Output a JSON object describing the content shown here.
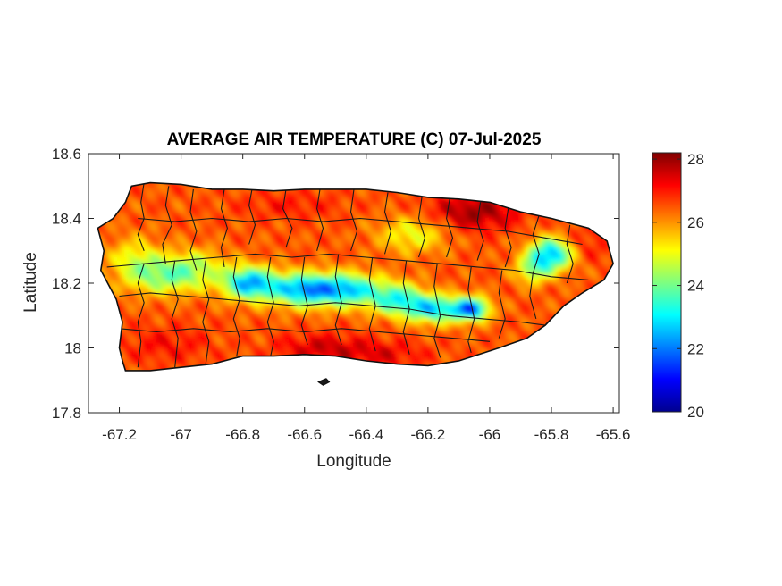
{
  "chart_data": {
    "type": "heatmap",
    "title": "AVERAGE AIR TEMPERATURE (C) 07-Jul-2025",
    "xlabel": "Longitude",
    "ylabel": "Latitude",
    "xlim": [
      -67.3,
      -65.58
    ],
    "ylim": [
      17.8,
      18.6
    ],
    "x_ticks": [
      -67.2,
      -67,
      -66.8,
      -66.6,
      -66.4,
      -66.2,
      -66,
      -65.8,
      -65.6
    ],
    "x_tick_labels": [
      "-67.2",
      "-67",
      "-66.8",
      "-66.6",
      "-66.4",
      "-66.2",
      "-66",
      "-65.8",
      "-65.6"
    ],
    "y_ticks": [
      17.8,
      18,
      18.2,
      18.4,
      18.6
    ],
    "y_tick_labels": [
      "17.8",
      "18",
      "18.2",
      "18.4",
      "18.6"
    ],
    "colorbar": {
      "colormap": "jet",
      "range": [
        20,
        28.2
      ],
      "ticks": [
        20,
        22,
        24,
        26,
        28
      ],
      "tick_labels": [
        "20",
        "22",
        "24",
        "26",
        "28"
      ]
    },
    "grid": false,
    "region_outline": [
      [
        -67.27,
        18.37
      ],
      [
        -67.22,
        18.4
      ],
      [
        -67.18,
        18.45
      ],
      [
        -67.16,
        18.5
      ],
      [
        -67.1,
        18.51
      ],
      [
        -67.0,
        18.505
      ],
      [
        -66.9,
        18.49
      ],
      [
        -66.8,
        18.49
      ],
      [
        -66.7,
        18.485
      ],
      [
        -66.6,
        18.49
      ],
      [
        -66.5,
        18.49
      ],
      [
        -66.4,
        18.49
      ],
      [
        -66.3,
        18.48
      ],
      [
        -66.2,
        18.465
      ],
      [
        -66.1,
        18.46
      ],
      [
        -66.0,
        18.45
      ],
      [
        -65.9,
        18.42
      ],
      [
        -65.8,
        18.4
      ],
      [
        -65.68,
        18.37
      ],
      [
        -65.62,
        18.33
      ],
      [
        -65.6,
        18.26
      ],
      [
        -65.63,
        18.21
      ],
      [
        -65.7,
        18.17
      ],
      [
        -65.76,
        18.13
      ],
      [
        -65.82,
        18.07
      ],
      [
        -65.88,
        18.03
      ],
      [
        -65.97,
        18.0
      ],
      [
        -66.1,
        17.96
      ],
      [
        -66.2,
        17.945
      ],
      [
        -66.3,
        17.95
      ],
      [
        -66.4,
        17.96
      ],
      [
        -66.5,
        17.975
      ],
      [
        -66.6,
        17.98
      ],
      [
        -66.7,
        17.975
      ],
      [
        -66.8,
        17.975
      ],
      [
        -66.9,
        17.95
      ],
      [
        -67.0,
        17.94
      ],
      [
        -67.1,
        17.93
      ],
      [
        -67.18,
        17.93
      ],
      [
        -67.19,
        17.96
      ],
      [
        -67.2,
        18.0
      ],
      [
        -67.19,
        18.08
      ],
      [
        -67.21,
        18.15
      ],
      [
        -67.26,
        18.24
      ],
      [
        -67.25,
        18.3
      ]
    ],
    "islet_outline": [
      [
        -66.555,
        17.895
      ],
      [
        -66.53,
        17.905
      ],
      [
        -66.52,
        17.895
      ],
      [
        -66.54,
        17.885
      ]
    ],
    "temperature_field": {
      "background": 26.5,
      "features": [
        {
          "lon": -66.78,
          "lat": 18.2,
          "sigma_lon": 0.06,
          "sigma_lat": 0.035,
          "delta": -4.0
        },
        {
          "lon": -66.6,
          "lat": 18.18,
          "sigma_lon": 0.08,
          "sigma_lat": 0.035,
          "delta": -4.2
        },
        {
          "lon": -66.45,
          "lat": 18.18,
          "sigma_lon": 0.07,
          "sigma_lat": 0.035,
          "delta": -3.2
        },
        {
          "lon": -66.3,
          "lat": 18.15,
          "sigma_lon": 0.06,
          "sigma_lat": 0.035,
          "delta": -3.0
        },
        {
          "lon": -66.18,
          "lat": 18.12,
          "sigma_lon": 0.06,
          "sigma_lat": 0.03,
          "delta": -3.5
        },
        {
          "lon": -66.06,
          "lat": 18.12,
          "sigma_lon": 0.04,
          "sigma_lat": 0.025,
          "delta": -4.5
        },
        {
          "lon": -65.8,
          "lat": 18.29,
          "sigma_lon": 0.05,
          "sigma_lat": 0.035,
          "delta": -4.0
        },
        {
          "lon": -65.86,
          "lat": 18.24,
          "sigma_lon": 0.04,
          "sigma_lat": 0.03,
          "delta": -2.0
        },
        {
          "lon": -67.05,
          "lat": 18.22,
          "sigma_lon": 0.08,
          "sigma_lat": 0.04,
          "delta": -2.0
        },
        {
          "lon": -66.95,
          "lat": 18.25,
          "sigma_lon": 0.07,
          "sigma_lat": 0.04,
          "delta": -1.5
        },
        {
          "lon": -67.15,
          "lat": 18.27,
          "sigma_lon": 0.06,
          "sigma_lat": 0.05,
          "delta": -1.5
        },
        {
          "lon": -66.25,
          "lat": 18.35,
          "sigma_lon": 0.08,
          "sigma_lat": 0.04,
          "delta": -1.5
        },
        {
          "lon": -66.05,
          "lat": 18.42,
          "sigma_lon": 0.1,
          "sigma_lat": 0.04,
          "delta": 1.5
        },
        {
          "lon": -66.65,
          "lat": 18.44,
          "sigma_lon": 0.12,
          "sigma_lat": 0.03,
          "delta": 0.5
        },
        {
          "lon": -66.55,
          "lat": 18.0,
          "sigma_lon": 0.1,
          "sigma_lat": 0.03,
          "delta": 1.0
        },
        {
          "lon": -66.35,
          "lat": 17.98,
          "sigma_lon": 0.1,
          "sigma_lat": 0.03,
          "delta": 0.8
        },
        {
          "lon": -67.05,
          "lat": 18.01,
          "sigma_lon": 0.1,
          "sigma_lat": 0.04,
          "delta": 0.6
        },
        {
          "lon": -65.7,
          "lat": 18.32,
          "sigma_lon": 0.06,
          "sigma_lat": 0.04,
          "delta": 0.6
        }
      ]
    },
    "municipal_boundaries": [
      [
        [
          -67.12,
          18.51
        ],
        [
          -67.13,
          18.45
        ],
        [
          -67.12,
          18.4
        ],
        [
          -67.14,
          18.35
        ],
        [
          -67.12,
          18.3
        ]
      ],
      [
        [
          -67.04,
          18.5
        ],
        [
          -67.05,
          18.44
        ],
        [
          -67.03,
          18.38
        ],
        [
          -67.06,
          18.32
        ],
        [
          -67.05,
          18.26
        ]
      ],
      [
        [
          -66.96,
          18.49
        ],
        [
          -66.97,
          18.42
        ],
        [
          -66.95,
          18.36
        ],
        [
          -66.97,
          18.3
        ],
        [
          -66.95,
          18.24
        ]
      ],
      [
        [
          -66.86,
          18.49
        ],
        [
          -66.87,
          18.43
        ],
        [
          -66.85,
          18.37
        ],
        [
          -66.87,
          18.31
        ],
        [
          -66.86,
          18.25
        ]
      ],
      [
        [
          -66.77,
          18.49
        ],
        [
          -66.78,
          18.44
        ],
        [
          -66.76,
          18.38
        ],
        [
          -66.78,
          18.32
        ]
      ],
      [
        [
          -66.66,
          18.49
        ],
        [
          -66.67,
          18.43
        ],
        [
          -66.64,
          18.37
        ],
        [
          -66.66,
          18.31
        ]
      ],
      [
        [
          -66.55,
          18.49
        ],
        [
          -66.56,
          18.43
        ],
        [
          -66.54,
          18.37
        ],
        [
          -66.56,
          18.3
        ]
      ],
      [
        [
          -66.44,
          18.49
        ],
        [
          -66.45,
          18.42
        ],
        [
          -66.43,
          18.36
        ],
        [
          -66.45,
          18.3
        ]
      ],
      [
        [
          -66.33,
          18.48
        ],
        [
          -66.34,
          18.42
        ],
        [
          -66.32,
          18.36
        ],
        [
          -66.34,
          18.29
        ]
      ],
      [
        [
          -66.22,
          18.465
        ],
        [
          -66.23,
          18.4
        ],
        [
          -66.21,
          18.34
        ],
        [
          -66.23,
          18.28
        ]
      ],
      [
        [
          -66.13,
          18.46
        ],
        [
          -66.14,
          18.4
        ],
        [
          -66.12,
          18.34
        ],
        [
          -66.14,
          18.28
        ]
      ],
      [
        [
          -66.03,
          18.45
        ],
        [
          -66.04,
          18.39
        ],
        [
          -66.02,
          18.33
        ],
        [
          -66.04,
          18.27
        ]
      ],
      [
        [
          -65.94,
          18.43
        ],
        [
          -65.95,
          18.37
        ],
        [
          -65.93,
          18.31
        ],
        [
          -65.95,
          18.25
        ]
      ],
      [
        [
          -65.84,
          18.41
        ],
        [
          -65.86,
          18.35
        ],
        [
          -65.84,
          18.29
        ],
        [
          -65.86,
          18.23
        ]
      ],
      [
        [
          -65.74,
          18.38
        ],
        [
          -65.75,
          18.32
        ],
        [
          -65.73,
          18.26
        ],
        [
          -65.75,
          18.2
        ]
      ],
      [
        [
          -67.24,
          18.25
        ],
        [
          -67.12,
          18.26
        ],
        [
          -67.0,
          18.27
        ],
        [
          -66.88,
          18.28
        ],
        [
          -66.76,
          18.29
        ],
        [
          -66.64,
          18.28
        ],
        [
          -66.52,
          18.29
        ],
        [
          -66.4,
          18.28
        ],
        [
          -66.28,
          18.27
        ],
        [
          -66.16,
          18.26
        ],
        [
          -66.04,
          18.25
        ],
        [
          -65.92,
          18.24
        ],
        [
          -65.8,
          18.22
        ],
        [
          -65.68,
          18.21
        ]
      ],
      [
        [
          -67.2,
          18.16
        ],
        [
          -67.1,
          18.17
        ],
        [
          -66.98,
          18.16
        ],
        [
          -66.86,
          18.15
        ],
        [
          -66.74,
          18.14
        ],
        [
          -66.62,
          18.13
        ],
        [
          -66.5,
          18.14
        ],
        [
          -66.38,
          18.13
        ],
        [
          -66.26,
          18.12
        ],
        [
          -66.14,
          18.1
        ],
        [
          -66.02,
          18.09
        ],
        [
          -65.9,
          18.08
        ],
        [
          -65.82,
          18.07
        ]
      ],
      [
        [
          -67.12,
          18.26
        ],
        [
          -67.14,
          18.2
        ],
        [
          -67.12,
          18.14
        ],
        [
          -67.14,
          18.08
        ],
        [
          -67.13,
          18.02
        ],
        [
          -67.14,
          17.94
        ]
      ],
      [
        [
          -67.02,
          18.27
        ],
        [
          -67.03,
          18.21
        ],
        [
          -67.01,
          18.15
        ],
        [
          -67.03,
          18.09
        ],
        [
          -67.01,
          18.03
        ],
        [
          -67.02,
          17.94
        ]
      ],
      [
        [
          -66.92,
          18.27
        ],
        [
          -66.93,
          18.21
        ],
        [
          -66.91,
          18.15
        ],
        [
          -66.93,
          18.08
        ],
        [
          -66.91,
          18.02
        ],
        [
          -66.92,
          17.95
        ]
      ],
      [
        [
          -66.82,
          18.28
        ],
        [
          -66.83,
          18.22
        ],
        [
          -66.81,
          18.15
        ],
        [
          -66.83,
          18.09
        ],
        [
          -66.81,
          18.03
        ],
        [
          -66.82,
          17.975
        ]
      ],
      [
        [
          -66.71,
          18.28
        ],
        [
          -66.72,
          18.22
        ],
        [
          -66.7,
          18.14
        ],
        [
          -66.72,
          18.08
        ],
        [
          -66.7,
          18.02
        ],
        [
          -66.71,
          17.975
        ]
      ],
      [
        [
          -66.6,
          18.28
        ],
        [
          -66.61,
          18.21
        ],
        [
          -66.59,
          18.13
        ],
        [
          -66.61,
          18.07
        ],
        [
          -66.59,
          18.01
        ]
      ],
      [
        [
          -66.49,
          18.29
        ],
        [
          -66.5,
          18.22
        ],
        [
          -66.48,
          18.14
        ],
        [
          -66.5,
          18.07
        ],
        [
          -66.48,
          18.01
        ]
      ],
      [
        [
          -66.38,
          18.28
        ],
        [
          -66.39,
          18.21
        ],
        [
          -66.37,
          18.13
        ],
        [
          -66.39,
          18.06
        ],
        [
          -66.37,
          17.99
        ]
      ],
      [
        [
          -66.27,
          18.27
        ],
        [
          -66.28,
          18.2
        ],
        [
          -66.26,
          18.12
        ],
        [
          -66.28,
          18.05
        ],
        [
          -66.26,
          17.98
        ]
      ],
      [
        [
          -66.17,
          18.26
        ],
        [
          -66.18,
          18.19
        ],
        [
          -66.16,
          18.1
        ],
        [
          -66.18,
          18.03
        ],
        [
          -66.16,
          17.97
        ]
      ],
      [
        [
          -66.06,
          18.25
        ],
        [
          -66.07,
          18.18
        ],
        [
          -66.05,
          18.09
        ],
        [
          -66.07,
          18.02
        ],
        [
          -66.06,
          17.985
        ]
      ],
      [
        [
          -65.96,
          18.24
        ],
        [
          -65.97,
          18.17
        ],
        [
          -65.95,
          18.09
        ],
        [
          -65.97,
          18.03
        ]
      ],
      [
        [
          -65.86,
          18.23
        ],
        [
          -65.87,
          18.16
        ],
        [
          -65.85,
          18.09
        ]
      ],
      [
        [
          -67.2,
          18.06
        ],
        [
          -67.08,
          18.05
        ],
        [
          -66.96,
          18.06
        ],
        [
          -66.84,
          18.05
        ],
        [
          -66.72,
          18.06
        ],
        [
          -66.6,
          18.05
        ],
        [
          -66.48,
          18.06
        ],
        [
          -66.36,
          18.05
        ],
        [
          -66.24,
          18.04
        ],
        [
          -66.12,
          18.03
        ],
        [
          -66.0,
          18.02
        ]
      ],
      [
        [
          -67.14,
          18.4
        ],
        [
          -67.02,
          18.39
        ],
        [
          -66.9,
          18.4
        ],
        [
          -66.78,
          18.39
        ],
        [
          -66.66,
          18.4
        ],
        [
          -66.54,
          18.39
        ],
        [
          -66.42,
          18.4
        ],
        [
          -66.3,
          18.39
        ],
        [
          -66.18,
          18.38
        ],
        [
          -66.06,
          18.37
        ],
        [
          -65.94,
          18.36
        ],
        [
          -65.82,
          18.34
        ],
        [
          -65.7,
          18.32
        ]
      ]
    ]
  }
}
